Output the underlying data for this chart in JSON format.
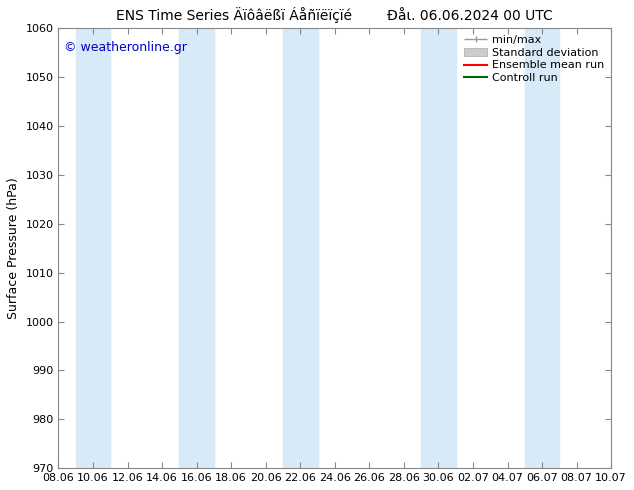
{
  "title_left": "ENS Time Series Äïôâëßï Áåñïëïçïé",
  "title_right": "Đåι. 06.06.2024 00 UTC",
  "ylabel": "Surface Pressure (hPa)",
  "watermark": "© weatheronline.gr",
  "ylim": [
    970,
    1060
  ],
  "yticks": [
    970,
    980,
    990,
    1000,
    1010,
    1020,
    1030,
    1040,
    1050,
    1060
  ],
  "xtick_labels": [
    "08.06",
    "10.06",
    "12.06",
    "14.06",
    "16.06",
    "18.06",
    "20.06",
    "22.06",
    "24.06",
    "26.06",
    "28.06",
    "30.06",
    "02.07",
    "04.07",
    "06.07",
    "08.07",
    "10.07"
  ],
  "xtick_positions": [
    0,
    2,
    4,
    6,
    8,
    10,
    12,
    14,
    16,
    18,
    20,
    22,
    24,
    26,
    28,
    30,
    32
  ],
  "xlim": [
    0,
    32
  ],
  "shaded_bands": [
    {
      "x_start": 1.0,
      "x_end": 3.0
    },
    {
      "x_start": 7.0,
      "x_end": 9.0
    },
    {
      "x_start": 13.0,
      "x_end": 15.0
    },
    {
      "x_start": 21.0,
      "x_end": 23.0
    },
    {
      "x_start": 27.0,
      "x_end": 29.0
    }
  ],
  "band_color": "#d8eaf7",
  "background_color": "#ffffff",
  "title_fontsize": 10,
  "ylabel_fontsize": 9,
  "tick_fontsize": 8,
  "watermark_color": "#0000cc",
  "watermark_fontsize": 9,
  "legend_fontsize": 8,
  "spine_color": "#888888",
  "tick_color": "#000000"
}
